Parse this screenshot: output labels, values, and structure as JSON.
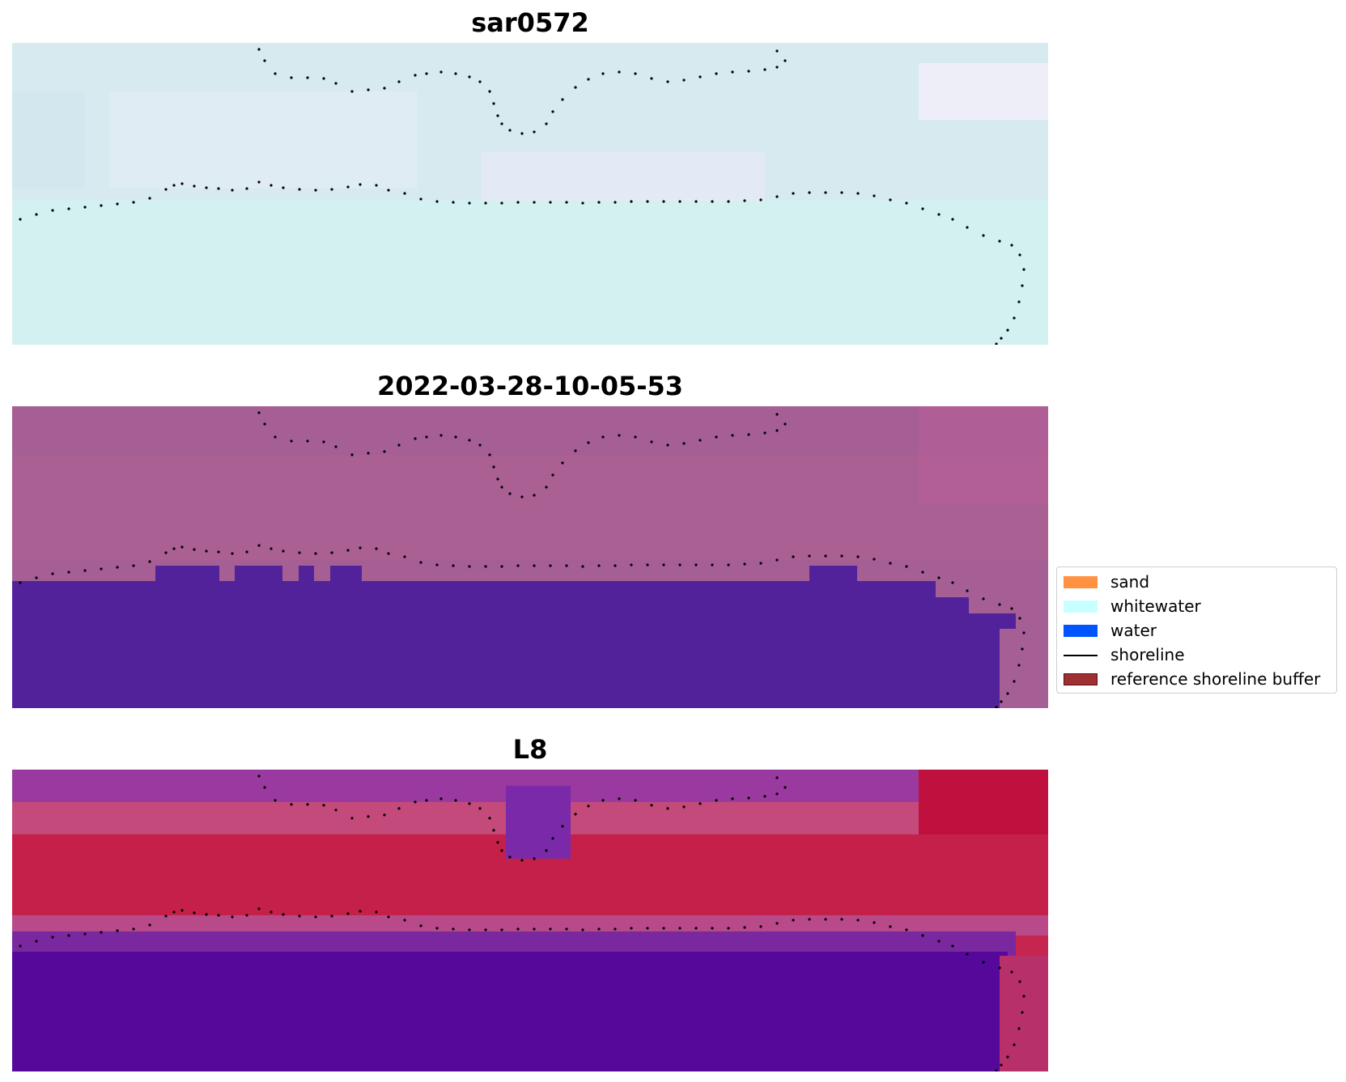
{
  "panels": [
    {
      "title": "sar0572"
    },
    {
      "title": "2022-03-28-10-05-53"
    },
    {
      "title": "L8"
    }
  ],
  "legend": {
    "items": [
      {
        "label": "sand",
        "color": "#ff9140",
        "kind": "patch"
      },
      {
        "label": "whitewater",
        "color": "#c8ffff",
        "kind": "patch"
      },
      {
        "label": "water",
        "color": "#0055ff",
        "kind": "patch"
      },
      {
        "label": "shoreline",
        "color": "#000000",
        "kind": "line"
      },
      {
        "label": "reference shoreline buffer",
        "color": "#9e2f33",
        "kind": "patch"
      }
    ]
  },
  "colors": {
    "sar_bg": "#d6eaf0",
    "sar_lower": "#d4f1f2",
    "class_bg": "#a55f95",
    "class_water": "#52229a",
    "l8_top": "#8f3aa3",
    "l8_red": "#c6254f",
    "l8_water": "#55089a",
    "shoreline": "#000000"
  }
}
